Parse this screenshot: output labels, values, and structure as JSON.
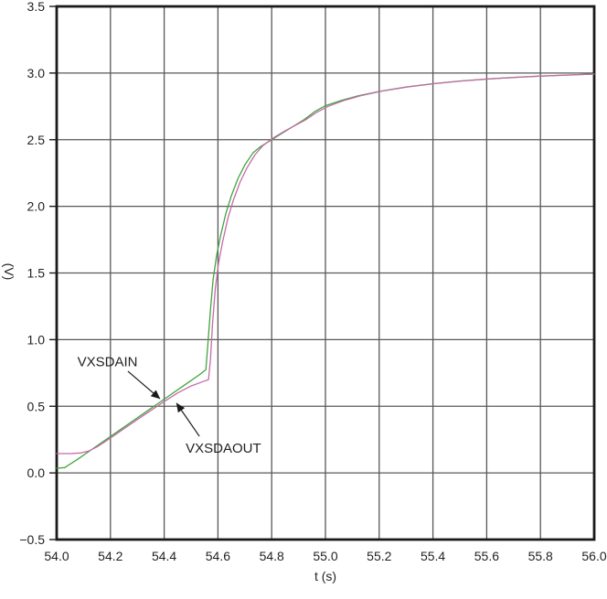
{
  "colors": {
    "background": "#ffffff",
    "grid": "#58585a",
    "axis_border": "#1a1a1a",
    "text": "#231f20",
    "vxsdain_green": "#3fa43f",
    "vxsdaout_magenta": "#c46ba6"
  },
  "chart_data": {
    "type": "line",
    "title": "",
    "xlabel": "t (s)",
    "ylabel": "(V)",
    "xlim": [
      54.0,
      56.0
    ],
    "ylim": [
      -0.5,
      3.5
    ],
    "grid": true,
    "legend_position": "none (curves labeled with arrow annotations)",
    "xticks": {
      "values": [
        54.0,
        54.2,
        54.4,
        54.6,
        54.8,
        55.0,
        55.2,
        55.4,
        55.6,
        55.8,
        56.0
      ],
      "labels": [
        "54.0",
        "54.2",
        "54.4",
        "54.6",
        "54.8",
        "55.0",
        "55.2",
        "55.4",
        "55.6",
        "55.8",
        "56.0"
      ]
    },
    "yticks": {
      "values": [
        3.5,
        3.0,
        2.5,
        2.0,
        1.5,
        1.0,
        0.5,
        0.0,
        -0.5
      ],
      "labels": [
        "3.5",
        "3.0",
        "2.5",
        "2.0",
        "1.5",
        "1.0",
        "0.5",
        "0.0",
        "−0.5"
      ]
    },
    "series": [
      {
        "name": "VXSDAIN",
        "color": "#3fa43f",
        "points": [
          [
            54.0,
            0.035
          ],
          [
            54.03,
            0.04
          ],
          [
            54.08,
            0.105
          ],
          [
            54.13,
            0.175
          ],
          [
            54.18,
            0.245
          ],
          [
            54.23,
            0.315
          ],
          [
            54.28,
            0.385
          ],
          [
            54.33,
            0.455
          ],
          [
            54.38,
            0.525
          ],
          [
            54.43,
            0.595
          ],
          [
            54.48,
            0.665
          ],
          [
            54.53,
            0.735
          ],
          [
            54.555,
            0.775
          ],
          [
            54.562,
            0.95
          ],
          [
            54.572,
            1.22
          ],
          [
            54.582,
            1.45
          ],
          [
            54.595,
            1.63
          ],
          [
            54.61,
            1.78
          ],
          [
            54.63,
            1.95
          ],
          [
            54.65,
            2.08
          ],
          [
            54.675,
            2.21
          ],
          [
            54.7,
            2.31
          ],
          [
            54.73,
            2.4
          ],
          [
            54.76,
            2.45
          ],
          [
            54.8,
            2.5
          ],
          [
            54.84,
            2.55
          ],
          [
            54.88,
            2.6
          ],
          [
            54.92,
            2.65
          ],
          [
            54.96,
            2.71
          ],
          [
            55.0,
            2.755
          ],
          [
            55.06,
            2.795
          ],
          [
            55.12,
            2.828
          ],
          [
            55.2,
            2.862
          ],
          [
            55.3,
            2.895
          ],
          [
            55.4,
            2.92
          ],
          [
            55.5,
            2.94
          ],
          [
            55.6,
            2.955
          ],
          [
            55.7,
            2.967
          ],
          [
            55.8,
            2.977
          ],
          [
            55.9,
            2.985
          ],
          [
            56.0,
            2.992
          ]
        ]
      },
      {
        "name": "VXSDAOUT",
        "color": "#c46ba6",
        "points": [
          [
            54.0,
            0.145
          ],
          [
            54.05,
            0.145
          ],
          [
            54.09,
            0.15
          ],
          [
            54.12,
            0.165
          ],
          [
            54.15,
            0.195
          ],
          [
            54.18,
            0.235
          ],
          [
            54.22,
            0.29
          ],
          [
            54.26,
            0.345
          ],
          [
            54.3,
            0.4
          ],
          [
            54.35,
            0.468
          ],
          [
            54.4,
            0.535
          ],
          [
            54.45,
            0.6
          ],
          [
            54.5,
            0.652
          ],
          [
            54.54,
            0.682
          ],
          [
            54.565,
            0.7
          ],
          [
            54.572,
            0.85
          ],
          [
            54.58,
            1.12
          ],
          [
            54.59,
            1.38
          ],
          [
            54.602,
            1.57
          ],
          [
            54.617,
            1.73
          ],
          [
            54.637,
            1.91
          ],
          [
            54.657,
            2.045
          ],
          [
            54.682,
            2.18
          ],
          [
            54.707,
            2.285
          ],
          [
            54.737,
            2.385
          ],
          [
            54.767,
            2.455
          ],
          [
            54.807,
            2.515
          ],
          [
            54.847,
            2.563
          ],
          [
            54.887,
            2.607
          ],
          [
            54.927,
            2.65
          ],
          [
            54.967,
            2.705
          ],
          [
            55.01,
            2.75
          ],
          [
            55.07,
            2.795
          ],
          [
            55.13,
            2.83
          ],
          [
            55.21,
            2.865
          ],
          [
            55.31,
            2.897
          ],
          [
            55.41,
            2.921
          ],
          [
            55.51,
            2.941
          ],
          [
            55.61,
            2.956
          ],
          [
            55.71,
            2.968
          ],
          [
            55.81,
            2.978
          ],
          [
            55.91,
            2.986
          ],
          [
            56.0,
            2.992
          ]
        ]
      }
    ],
    "annotations": [
      {
        "id": "vxsdain",
        "text": "VXSDAIN",
        "text_t": 54.077,
        "text_v": 0.8,
        "arrow_tail_t": 54.265,
        "arrow_tail_v": 0.763,
        "arrow_tip_t": 54.384,
        "arrow_tip_v": 0.557
      },
      {
        "id": "vxsdaout",
        "text": "VXSDAOUT",
        "text_t": 54.48,
        "text_v": 0.152,
        "arrow_tail_t": 54.531,
        "arrow_tail_v": 0.275,
        "arrow_tip_t": 54.446,
        "arrow_tip_v": 0.523
      }
    ]
  }
}
